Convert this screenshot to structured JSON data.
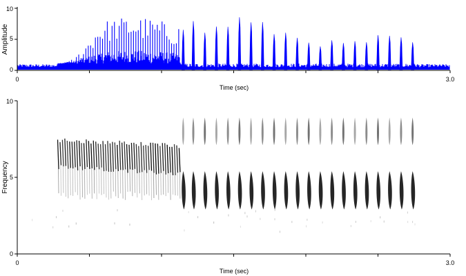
{
  "chart_data": [
    {
      "type": "line",
      "subtype": "waveform",
      "xlabel": "Time (sec)",
      "ylabel": "Amplitude",
      "xlim": [
        0,
        3.0
      ],
      "ylim": [
        0,
        10
      ],
      "x_tick_labels": [
        "0",
        "3.0"
      ],
      "y_tick_labels": [
        "0",
        "5",
        "10"
      ],
      "series_color": "#0000ff",
      "approx_envelope": {
        "x": [
          0.0,
          0.3,
          0.4,
          0.5,
          0.55,
          0.6,
          0.7,
          0.8,
          0.9,
          1.0,
          1.1,
          1.2,
          1.3,
          1.4,
          1.5,
          1.6,
          1.7,
          1.8,
          1.9,
          2.0,
          2.1,
          2.2,
          2.3,
          2.4,
          2.5,
          2.6,
          2.7,
          2.75,
          2.8,
          2.9,
          3.0
        ],
        "y": [
          0.5,
          0.6,
          2.0,
          5.0,
          7.0,
          8.0,
          8.5,
          8.8,
          8.5,
          8.0,
          7.0,
          8.5,
          7.0,
          7.5,
          9.0,
          8.5,
          7.5,
          7.0,
          6.0,
          5.5,
          5.0,
          4.5,
          4.5,
          5.0,
          5.5,
          5.5,
          5.0,
          4.5,
          0.6,
          0.5,
          0.5
        ]
      },
      "pulse_times": [
        1.15,
        1.22,
        1.3,
        1.38,
        1.46,
        1.54,
        1.62,
        1.7,
        1.78,
        1.86,
        1.94,
        2.02,
        2.1,
        2.18,
        2.26,
        2.34,
        2.42,
        2.5,
        2.58,
        2.66,
        2.74
      ]
    },
    {
      "type": "heatmap",
      "subtype": "spectrogram",
      "xlabel": "Time (sec)",
      "ylabel": "Frequency",
      "xlim": [
        0,
        3.0
      ],
      "ylim": [
        0,
        10
      ],
      "x_tick_labels": [
        "0",
        "3.0"
      ],
      "y_tick_labels": [
        "0",
        "5",
        "10"
      ],
      "colormap": "grayscale (white = low, black = high intensity)",
      "trill_segment": {
        "t_start": 0.28,
        "t_end": 1.13,
        "freq_center": 6.0,
        "freq_range": [
          3.5,
          7.5
        ]
      },
      "pulse_segment": {
        "t_start": 1.15,
        "t_end": 2.74,
        "harmonic_freq": 8.0,
        "fundamental_freq": 4.0,
        "pulse_times": [
          1.15,
          1.22,
          1.3,
          1.38,
          1.46,
          1.54,
          1.62,
          1.7,
          1.78,
          1.86,
          1.94,
          2.02,
          2.1,
          2.18,
          2.26,
          2.34,
          2.42,
          2.5,
          2.58,
          2.66,
          2.74
        ]
      }
    }
  ]
}
